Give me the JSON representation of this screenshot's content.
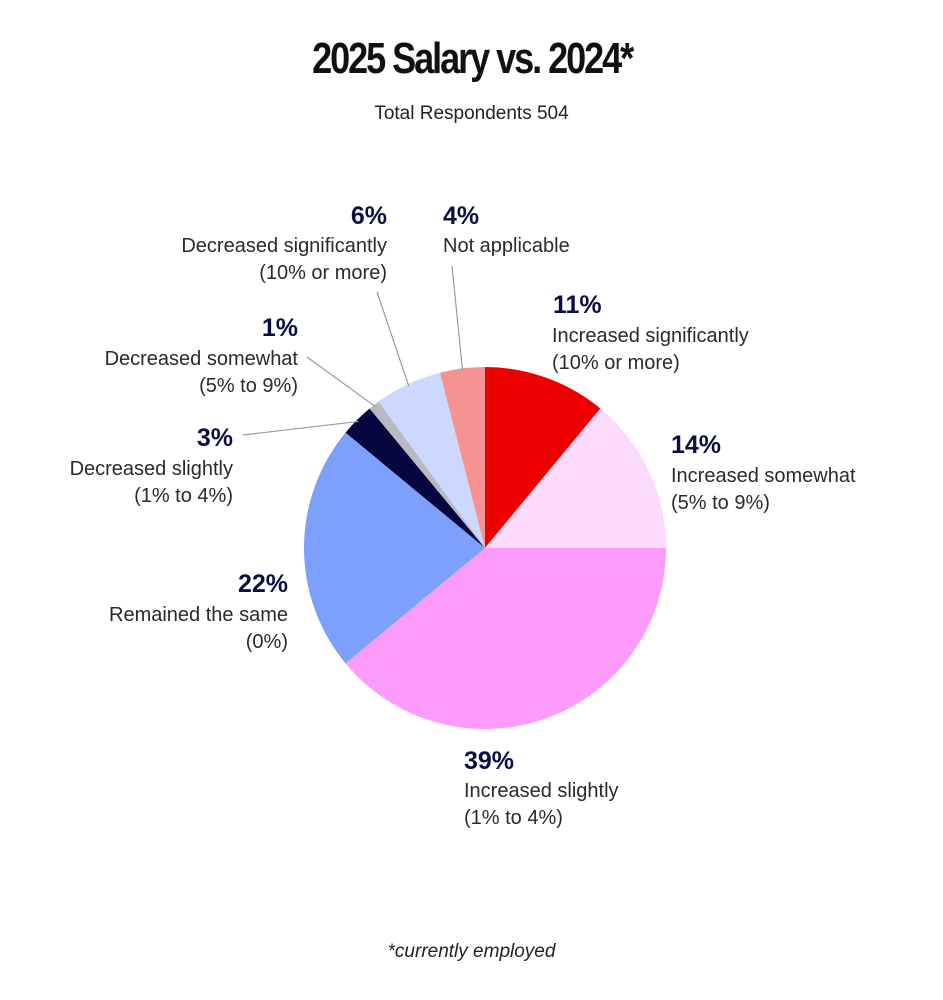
{
  "chart_data": {
    "type": "pie",
    "title": "2025 Salary vs. 2024*",
    "subtitle": "Total Respondents 504",
    "footnote": "*currently employed",
    "slices": [
      {
        "key": "inc-sig",
        "pct_label": "11%",
        "value": 11,
        "label1": "Increased significantly",
        "label2": "(10% or more)",
        "color": "#ee0000"
      },
      {
        "key": "inc-some",
        "pct_label": "14%",
        "value": 14,
        "label1": "Increased somewhat",
        "label2": "(5% to 9%)",
        "color": "#fdd9fc"
      },
      {
        "key": "inc-slight",
        "pct_label": "39%",
        "value": 39,
        "label1": "Increased slightly",
        "label2": "(1% to 4%)",
        "color": "#fd9bfb"
      },
      {
        "key": "same",
        "pct_label": "22%",
        "value": 22,
        "label1": "Remained the same",
        "label2": "(0%)",
        "color": "#7ca0fc"
      },
      {
        "key": "dec-slight",
        "pct_label": "3%",
        "value": 3,
        "label1": "Decreased slightly",
        "label2": "(1% to 4%)",
        "color": "#05053f"
      },
      {
        "key": "dec-some",
        "pct_label": "1%",
        "value": 1,
        "label1": "Decreased somewhat",
        "label2": "(5% to 9%)",
        "color": "#b9b9c4"
      },
      {
        "key": "dec-sig",
        "pct_label": "6%",
        "value": 6,
        "label1": "Decreased significantly",
        "label2": "(10% or more)",
        "color": "#ccd8fd"
      },
      {
        "key": "na",
        "pct_label": "4%",
        "value": 4,
        "label1": "Not applicable",
        "label2": "",
        "color": "#f69392"
      }
    ]
  }
}
